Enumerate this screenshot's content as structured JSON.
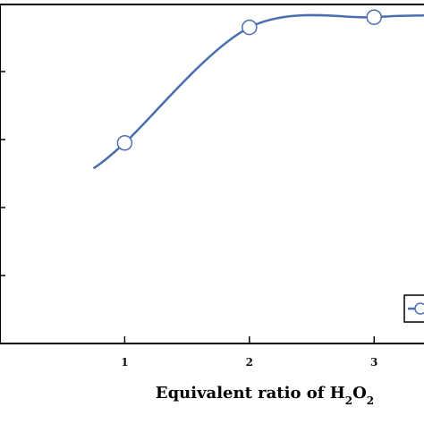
{
  "chart_data": {
    "type": "line",
    "xlabel_parts": [
      {
        "text": "Equivalent ratio of  H",
        "sub": false
      },
      {
        "text": "2",
        "sub": true
      },
      {
        "text": "O",
        "sub": false
      },
      {
        "text": "2",
        "sub": true
      }
    ],
    "xlabel": "Equivalent ratio of H2O2",
    "ylabel": "",
    "x_ticks": [
      "1",
      "2",
      "3"
    ],
    "xlim": [
      0,
      3.4
    ],
    "ylim": [
      0,
      1
    ],
    "grid": false,
    "legend_position": "bottom-right",
    "series": [
      {
        "color": "#4a6fae",
        "marker": "open-circle",
        "points": [
          {
            "x": 1,
            "y": 0.59
          },
          {
            "x": 2,
            "y": 0.93
          },
          {
            "x": 3,
            "y": 0.96
          },
          {
            "x": 3.4,
            "y": 0.965
          }
        ],
        "curve_start": {
          "x": 0.75,
          "y": 0.515
        }
      }
    ]
  }
}
